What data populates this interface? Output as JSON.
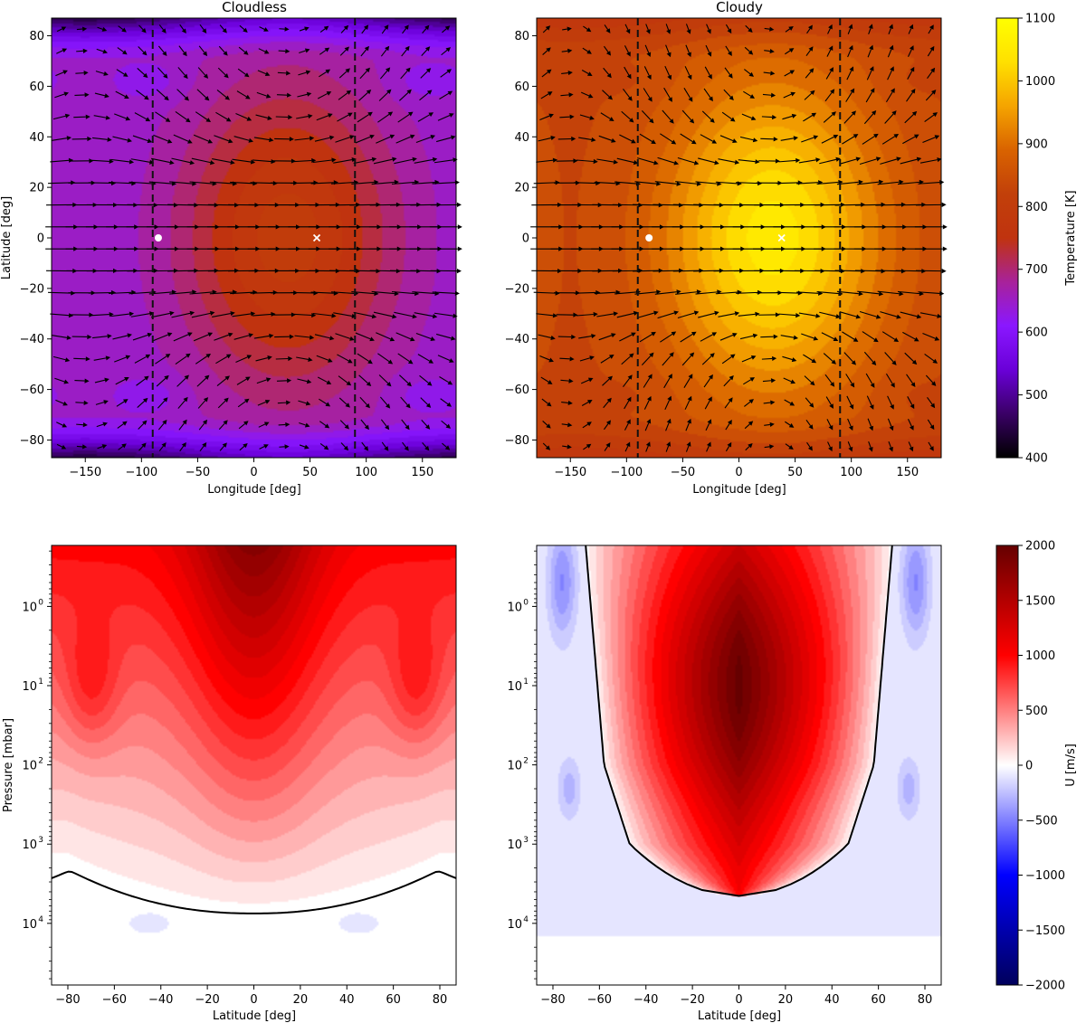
{
  "colors": {
    "temperature_colormap": [
      "#000000",
      "#3a0066",
      "#6a00d8",
      "#8a17ff",
      "#a8229a",
      "#c0330f",
      "#c2400a",
      "#d96300",
      "#f5a400",
      "#ffe000",
      "#ffff00"
    ],
    "wind_colormap": [
      "#00005c",
      "#0000ff",
      "#ffffff",
      "#ff0000",
      "#660000"
    ]
  },
  "chart_data": [
    {
      "type": "heatmap",
      "id": "cloudless-temperature",
      "title": "Cloudless",
      "xlabel": "Longitude [deg]",
      "ylabel": "Latitude [deg]",
      "xlim": [
        -180,
        180
      ],
      "ylim": [
        -87,
        87
      ],
      "xticks": [
        -150,
        -100,
        -50,
        0,
        50,
        100,
        150
      ],
      "yticks": [
        -80,
        -60,
        -40,
        -20,
        0,
        20,
        40,
        60,
        80
      ],
      "xtick_labels": [
        "−150",
        "−100",
        "−50",
        "0",
        "50",
        "100",
        "150"
      ],
      "ytick_labels": [
        "−80",
        "−60",
        "−40",
        "−20",
        "0",
        "20",
        "40",
        "60",
        "80"
      ],
      "terminators": [
        -90,
        90
      ],
      "substellar_point": [
        -85,
        0
      ],
      "hottest_point": [
        56,
        0
      ],
      "hotspot_center_lon": 30,
      "hotspot_temperature": 800,
      "nightside_temperature": 640,
      "polar_temperature": 430,
      "quiver_levels": 20,
      "value_unit": "K"
    },
    {
      "type": "heatmap",
      "id": "cloudy-temperature",
      "title": "Cloudy",
      "xlabel": "Longitude [deg]",
      "ylabel": "",
      "xlim": [
        -180,
        180
      ],
      "ylim": [
        -87,
        87
      ],
      "xticks": [
        -150,
        -100,
        -50,
        0,
        50,
        100,
        150
      ],
      "yticks": [
        -80,
        -60,
        -40,
        -20,
        0,
        20,
        40,
        60,
        80
      ],
      "xtick_labels": [
        "−150",
        "−100",
        "−50",
        "0",
        "50",
        "100",
        "150"
      ],
      "ytick_labels": [
        "−80",
        "−60",
        "−40",
        "−20",
        "0",
        "20",
        "40",
        "60",
        "80"
      ],
      "terminators": [
        -90,
        90
      ],
      "substellar_point": [
        -80,
        0
      ],
      "hottest_point": [
        38,
        0
      ],
      "hotspot_center_lon": 30,
      "hotspot_temperature": 1050,
      "nightside_temperature": 830,
      "polar_temperature": 760,
      "quiver_levels": 20,
      "value_unit": "K"
    },
    {
      "type": "heatmap",
      "id": "cloudless-zonal-wind",
      "title": "",
      "xlabel": "Latitude [deg]",
      "ylabel": "Pressure [mbar]",
      "xlim": [
        -87,
        87
      ],
      "ylim_pressure_mbar": [
        0.17,
        60000
      ],
      "y_scale": "log",
      "y_inverted": true,
      "xticks": [
        -80,
        -60,
        -40,
        -20,
        0,
        20,
        40,
        60,
        80
      ],
      "xtick_labels": [
        "−80",
        "−60",
        "−40",
        "−20",
        "0",
        "20",
        "40",
        "60",
        "80"
      ],
      "yticks": [
        1,
        10,
        100,
        1000,
        10000
      ],
      "ytick_bases": [
        "10",
        "10",
        "10",
        "10",
        "10"
      ],
      "ytick_exponents": [
        "0",
        "1",
        "2",
        "3",
        "4"
      ],
      "jet_peak_wind": 1800,
      "jet_peak_pressure_mbar": 10,
      "zero_wind_contour_pressure_mbar": {
        "at_equator": 7500,
        "at_60_deg": 3500,
        "at_80_deg": 2100
      },
      "value_unit": "m/s"
    },
    {
      "type": "heatmap",
      "id": "cloudy-zonal-wind",
      "title": "",
      "xlabel": "Latitude [deg]",
      "ylabel": "",
      "xlim": [
        -87,
        87
      ],
      "ylim_pressure_mbar": [
        0.17,
        60000
      ],
      "y_scale": "log",
      "y_inverted": true,
      "xticks": [
        -80,
        -60,
        -40,
        -20,
        0,
        20,
        40,
        60,
        80
      ],
      "xtick_labels": [
        "−80",
        "−60",
        "−40",
        "−20",
        "0",
        "20",
        "40",
        "60",
        "80"
      ],
      "yticks": [
        1,
        10,
        100,
        1000,
        10000
      ],
      "ytick_bases": [
        "10",
        "10",
        "10",
        "10",
        "10"
      ],
      "ytick_exponents": [
        "0",
        "1",
        "2",
        "3",
        "4"
      ],
      "jet_peak_wind": 2000,
      "jet_peak_pressure_mbar": 10,
      "zero_wind_contour_latitude_deg": {
        "at_top": 66,
        "at_100_mbar": 58,
        "at_1000_mbar": 47
      },
      "zero_wind_contour_bottom_mbar": 4500,
      "high_latitude_min_wind": -400,
      "value_unit": "m/s"
    }
  ],
  "colorbars": [
    {
      "id": "temperature-colorbar",
      "label": "Temperature [K]",
      "range": [
        400,
        1100
      ],
      "ticks": [
        400,
        500,
        600,
        700,
        800,
        900,
        1000,
        1100
      ],
      "tick_labels": [
        "400",
        "500",
        "600",
        "700",
        "800",
        "900",
        "1000",
        "1100"
      ]
    },
    {
      "id": "wind-colorbar",
      "label": "U [m/s]",
      "range": [
        -2000,
        2000
      ],
      "ticks": [
        -2000,
        -1500,
        -1000,
        -500,
        0,
        500,
        1000,
        1500,
        2000
      ],
      "tick_labels": [
        "−2000",
        "−1500",
        "−1000",
        "−500",
        "0",
        "500",
        "1000",
        "1500",
        "2000"
      ]
    }
  ]
}
